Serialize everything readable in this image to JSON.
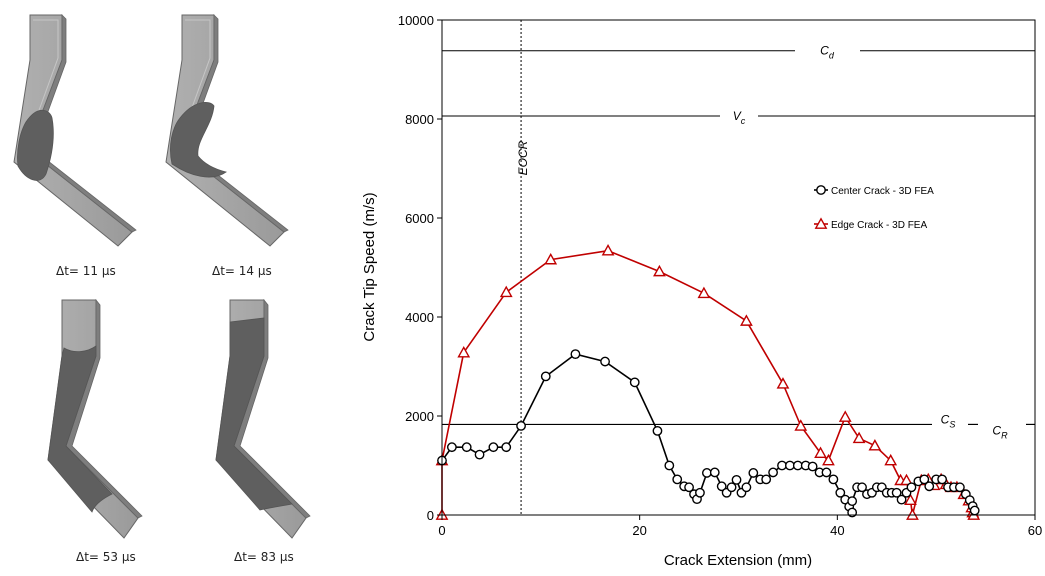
{
  "figures": {
    "captions": [
      "Δt= 11 μs",
      "Δt= 14 μs",
      "Δt= 53 μs",
      "Δt= 83 μs"
    ]
  },
  "chart_data": {
    "type": "line",
    "xlabel": "Crack Extension (mm)",
    "ylabel": "Crack Tip Speed (m/s)",
    "xlim": [
      0,
      60
    ],
    "ylim": [
      0,
      10000
    ],
    "xticks": [
      "0",
      "20",
      "40",
      "60"
    ],
    "yticks": [
      "0",
      "2000",
      "4000",
      "6000",
      "8000",
      "10000"
    ],
    "legend_position": "center-right",
    "reference_lines": [
      {
        "label": "C",
        "sub": "d",
        "y": 9380
      },
      {
        "label": "V",
        "sub": "c",
        "y": 8060
      },
      {
        "label": "C",
        "sub": "S",
        "y": 1830
      },
      {
        "label": "C",
        "sub": "R",
        "y": 1830
      }
    ],
    "vertical_marker": {
      "label": "EOCR",
      "x": 8
    },
    "series": [
      {
        "name": "Center Crack - 3D FEA",
        "color": "#000000",
        "marker": "circle",
        "points": [
          [
            0,
            1100
          ],
          [
            1,
            1370
          ],
          [
            2.5,
            1370
          ],
          [
            3.8,
            1220
          ],
          [
            5.2,
            1370
          ],
          [
            6.5,
            1370
          ],
          [
            8,
            1800
          ],
          [
            10.5,
            2800
          ],
          [
            13.5,
            3250
          ],
          [
            16.5,
            3100
          ],
          [
            19.5,
            2680
          ],
          [
            21.8,
            1700
          ],
          [
            23,
            1000
          ],
          [
            23.8,
            720
          ],
          [
            24.5,
            580
          ],
          [
            25,
            560
          ],
          [
            25.5,
            420
          ],
          [
            25.8,
            320
          ],
          [
            26.1,
            450
          ],
          [
            26.8,
            850
          ],
          [
            27.6,
            860
          ],
          [
            28.3,
            580
          ],
          [
            28.8,
            450
          ],
          [
            29.3,
            560
          ],
          [
            29.8,
            710
          ],
          [
            30.3,
            450
          ],
          [
            30.8,
            560
          ],
          [
            31.5,
            850
          ],
          [
            32.2,
            720
          ],
          [
            32.8,
            720
          ],
          [
            33.5,
            860
          ],
          [
            34.4,
            1000
          ],
          [
            35.2,
            1000
          ],
          [
            36,
            1000
          ],
          [
            36.8,
            1000
          ],
          [
            37.5,
            980
          ],
          [
            38.2,
            860
          ],
          [
            38.9,
            860
          ],
          [
            39.6,
            720
          ],
          [
            40.3,
            450
          ],
          [
            40.8,
            310
          ],
          [
            41.2,
            170
          ],
          [
            41.5,
            50
          ],
          [
            41.5,
            280
          ],
          [
            42,
            560
          ],
          [
            42.5,
            560
          ],
          [
            43,
            420
          ],
          [
            43.5,
            450
          ],
          [
            44,
            560
          ],
          [
            44.5,
            560
          ],
          [
            45,
            450
          ],
          [
            45.5,
            450
          ],
          [
            46,
            450
          ],
          [
            46.5,
            310
          ],
          [
            47,
            450
          ],
          [
            47.5,
            560
          ],
          [
            48.2,
            680
          ],
          [
            48.8,
            720
          ],
          [
            49.3,
            580
          ],
          [
            50,
            720
          ],
          [
            50.6,
            720
          ],
          [
            51.2,
            560
          ],
          [
            51.8,
            560
          ],
          [
            52.4,
            560
          ],
          [
            53,
            420
          ],
          [
            53.4,
            300
          ],
          [
            53.7,
            180
          ],
          [
            53.9,
            90
          ]
        ]
      },
      {
        "name": "Edge Crack - 3D FEA",
        "color": "#c00000",
        "marker": "triangle",
        "points": [
          [
            0,
            0
          ],
          [
            0,
            1100
          ],
          [
            2.2,
            3280
          ],
          [
            6.5,
            4500
          ],
          [
            11,
            5160
          ],
          [
            16.8,
            5340
          ],
          [
            22,
            4920
          ],
          [
            26.5,
            4480
          ],
          [
            30.8,
            3920
          ],
          [
            34.5,
            2650
          ],
          [
            36.3,
            1800
          ],
          [
            38.3,
            1250
          ],
          [
            39.1,
            1100
          ],
          [
            40.8,
            1980
          ],
          [
            42.2,
            1550
          ],
          [
            43.8,
            1400
          ],
          [
            45.4,
            1100
          ],
          [
            46.4,
            700
          ],
          [
            47,
            700
          ],
          [
            47.4,
            300
          ],
          [
            47.6,
            0
          ],
          [
            48.5,
            700
          ],
          [
            49.2,
            720
          ],
          [
            49.8,
            600
          ],
          [
            50.5,
            720
          ],
          [
            51,
            620
          ],
          [
            51.5,
            560
          ],
          [
            52.1,
            560
          ],
          [
            52.8,
            420
          ],
          [
            53.3,
            290
          ],
          [
            53.6,
            150
          ],
          [
            53.7,
            50
          ],
          [
            53.8,
            0
          ]
        ]
      }
    ]
  }
}
